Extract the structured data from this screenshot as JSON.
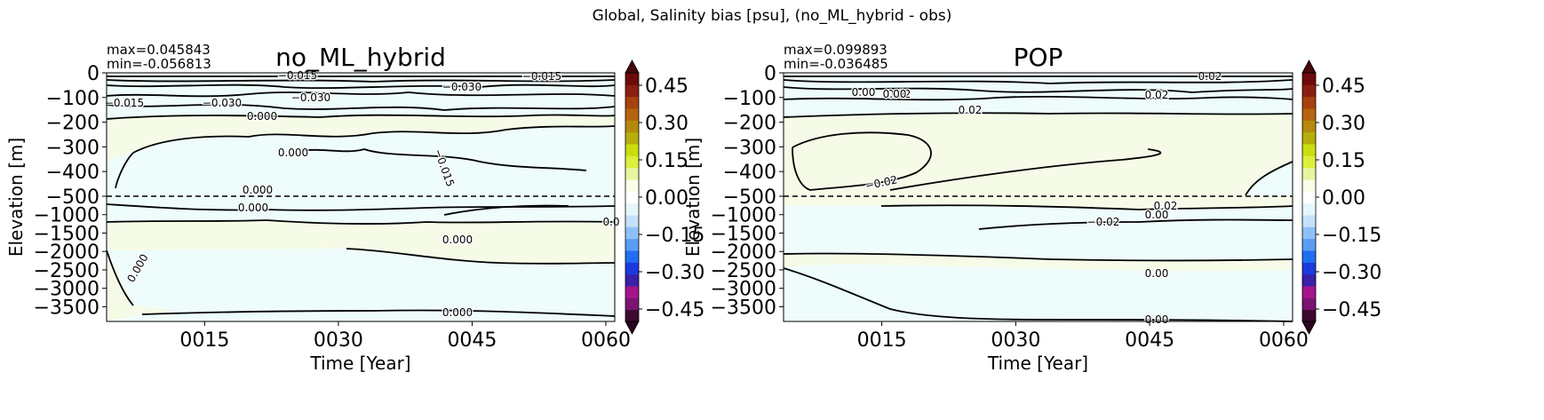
{
  "figure": {
    "suptitle": "Global, Salinity bias [psu], (no_ML_hybrid - obs)"
  },
  "chart_data": [
    {
      "type": "contour",
      "title": "no_ML_hybrid",
      "stats": [
        "max=0.045843",
        "min=-0.056813"
      ],
      "xlabel": "Time [Year]",
      "ylabel": "Elevation [m]",
      "xticks": [
        "0015",
        "0030",
        "0045",
        "0060"
      ],
      "xlim": [
        4,
        61
      ],
      "yticks_upper": [
        "0",
        "−100",
        "−200",
        "−300",
        "−400",
        "−500"
      ],
      "yticks_lower": [
        "−1000",
        "−1500",
        "−2000",
        "−2500",
        "−3000",
        "−3500"
      ],
      "upper_ylim": [
        -500,
        0
      ],
      "lower_ylim": [
        -3900,
        -500
      ],
      "split_line_depth": -500,
      "contour_labels": [
        "0.000",
        "−0.015",
        "−0.030",
        "0.000",
        "−0.030",
        "−0.015",
        "0.000",
        "−0.015",
        "−0.030",
        "−0.015",
        "0.000",
        "0.000",
        "0.000",
        "0.000",
        "0.0"
      ],
      "colorbar": {
        "ticks": [
          "0.45",
          "0.30",
          "0.15",
          "0.00",
          "−0.15",
          "−0.30",
          "−0.45"
        ],
        "range": [
          -0.5,
          0.5
        ]
      }
    },
    {
      "type": "contour",
      "title": "POP",
      "stats": [
        "max=0.099893",
        "min=-0.036485"
      ],
      "xlabel": "Time [Year]",
      "ylabel": "Elevation [m]",
      "xticks": [
        "0015",
        "0030",
        "0045",
        "0060"
      ],
      "xlim": [
        4,
        61
      ],
      "yticks_upper": [
        "0",
        "−100",
        "−200",
        "−300",
        "−400",
        "−500"
      ],
      "yticks_lower": [
        "−1000",
        "−1500",
        "−2000",
        "−2500",
        "−3000",
        "−3500"
      ],
      "upper_ylim": [
        -500,
        0
      ],
      "lower_ylim": [
        -3900,
        -500
      ],
      "split_line_depth": -500,
      "contour_labels": [
        "0.02",
        "0.00",
        "0.00",
        "0.02",
        "0.02",
        "0.02",
        "−0.02",
        "0.02",
        "0.00",
        "−0.02",
        "0.00",
        "0.00"
      ],
      "colorbar": {
        "ticks": [
          "0.45",
          "0.30",
          "0.15",
          "0.00",
          "−0.15",
          "−0.30",
          "−0.45"
        ],
        "range": [
          -0.5,
          0.5
        ]
      }
    }
  ],
  "colors": {
    "fill_positive": "#f6fbe8",
    "fill_negative": "#eefcfc",
    "contour_line": "#000000",
    "colorbar_levels": [
      "#3b0a2e",
      "#7a1470",
      "#a5148c",
      "#3a1fa8",
      "#1a3adf",
      "#1f6ef2",
      "#5a9cf5",
      "#8ec0f8",
      "#c4e0fb",
      "#e6f7fb",
      "#ffffff",
      "#fbfde6",
      "#e8f49e",
      "#dcef3a",
      "#c9dd0f",
      "#b6ad0c",
      "#b58a0e",
      "#b4640f",
      "#a8410f",
      "#8a1f10",
      "#6e0a0a"
    ],
    "colorbar_over": "#4a0808",
    "colorbar_under": "#2a0420"
  }
}
